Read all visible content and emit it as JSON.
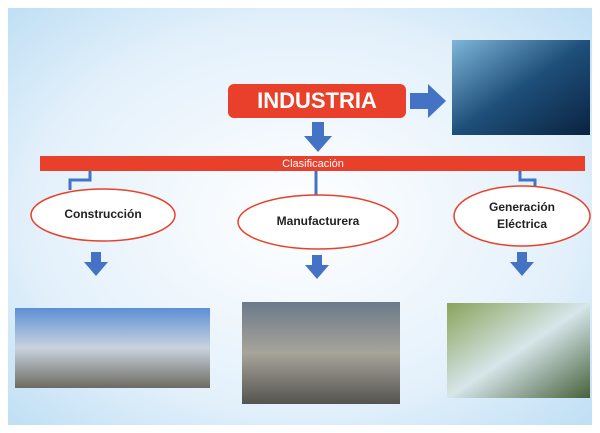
{
  "title": "INDUSTRIA",
  "bar_label": "Clasificación",
  "nodes": [
    {
      "label": [
        "Construcción"
      ]
    },
    {
      "label": [
        "Manufacturera"
      ]
    },
    {
      "label": [
        "Generación",
        "Eléctrica"
      ]
    }
  ]
}
